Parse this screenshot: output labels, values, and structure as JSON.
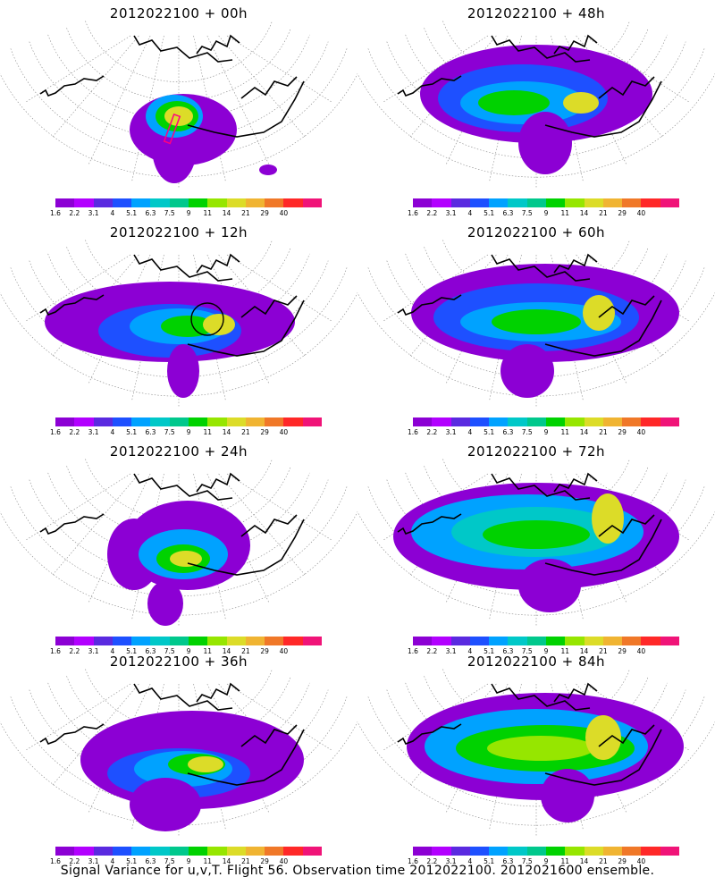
{
  "colorbar": {
    "tick_labels": [
      "1.6",
      "2.2",
      "3.1",
      "4",
      "5.1",
      "6.3",
      "7.5",
      "9",
      "11",
      "14",
      "21",
      "29",
      "40"
    ],
    "colors": [
      "#8c00d4",
      "#b200ff",
      "#5a2ae0",
      "#1e50ff",
      "#00a2ff",
      "#00c8c8",
      "#00c88c",
      "#00d200",
      "#96e600",
      "#dcdc28",
      "#f0b432",
      "#f07828",
      "#ff2828",
      "#f01478"
    ]
  },
  "panels": [
    {
      "title": "2012022100 + 00h",
      "lead_hours": 0
    },
    {
      "title": "2012022100 + 48h",
      "lead_hours": 48
    },
    {
      "title": "2012022100 + 12h",
      "lead_hours": 12
    },
    {
      "title": "2012022100 + 60h",
      "lead_hours": 60
    },
    {
      "title": "2012022100 + 24h",
      "lead_hours": 24
    },
    {
      "title": "2012022100 + 72h",
      "lead_hours": 72
    },
    {
      "title": "2012022100 + 36h",
      "lead_hours": 36
    },
    {
      "title": "2012022100 + 84h",
      "lead_hours": 84
    }
  ],
  "footer": "Signal Variance for u,v,T. Flight 56. Observation time 2012022100. 2012021600 ensemble."
}
